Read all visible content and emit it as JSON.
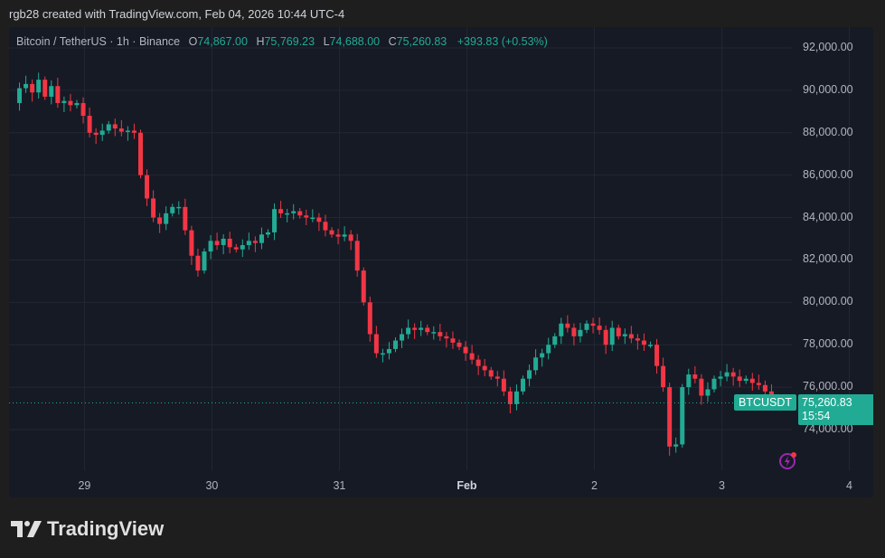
{
  "header": {
    "credit": "rgb28 created with TradingView.com, Feb 04, 2026 10:44 UTC-4"
  },
  "legend": {
    "symbol": "Bitcoin / TetherUS · 1h · Binance",
    "open_label": "O",
    "open": "74,867.00",
    "high_label": "H",
    "high": "75,769.23",
    "low_label": "L",
    "low": "74,688.00",
    "close_label": "C",
    "close": "75,260.83",
    "change": "+393.83 (+0.53%)"
  },
  "tags": {
    "symbol": "BTCUSDT",
    "price": "75,260.83",
    "countdown": "15:54"
  },
  "colors": {
    "up": "#22ab94",
    "down": "#f23645",
    "bg": "#161a25",
    "grid": "#232733",
    "accent": "#22ab94"
  },
  "footer": {
    "brand": "TradingView"
  },
  "chart_data": {
    "type": "candlestick",
    "title": "Bitcoin / TetherUS · 1h · Binance",
    "xlabel": "",
    "ylabel": "",
    "ylim": [
      72000,
      93000
    ],
    "y_ticks": [
      "92,000.00",
      "90,000.00",
      "88,000.00",
      "86,000.00",
      "84,000.00",
      "82,000.00",
      "80,000.00",
      "78,000.00",
      "76,000.00",
      "74,000.00"
    ],
    "x_ticks": [
      "29",
      "30",
      "31",
      "Feb",
      "2",
      "3",
      "4"
    ],
    "last_price": 75260.83,
    "grid": true,
    "closes": [
      89400,
      90100,
      90300,
      89900,
      90500,
      89700,
      90200,
      89400,
      89500,
      89300,
      89400,
      88800,
      88000,
      87900,
      88100,
      88400,
      88200,
      88050,
      88100,
      88000,
      86000,
      84900,
      84000,
      83700,
      84200,
      84500,
      84500,
      83400,
      82200,
      81500,
      82400,
      82900,
      82700,
      83000,
      82600,
      82500,
      82700,
      82900,
      82800,
      83200,
      83300,
      84400,
      84200,
      84200,
      84300,
      84100,
      84000,
      84000,
      83800,
      83400,
      83200,
      83100,
      83200,
      82900,
      81500,
      80000,
      78500,
      77600,
      77600,
      77800,
      78200,
      78500,
      78800,
      78700,
      78800,
      78600,
      78600,
      78400,
      78300,
      78100,
      77900,
      77600,
      77300,
      77000,
      76800,
      76500,
      76400,
      75800,
      75200,
      75800,
      76400,
      76800,
      77400,
      77600,
      78000,
      78400,
      79000,
      78800,
      78400,
      78700,
      79000,
      78900,
      78700,
      78000,
      78800,
      78400,
      78500,
      78300,
      78200,
      78000,
      78000,
      77000,
      76000,
      73200,
      73300,
      76000,
      76600,
      76400,
      75600,
      75900,
      76400,
      76500,
      76700,
      76500,
      76300,
      76400,
      76200,
      76100,
      75800,
      75300,
      75260
    ],
    "x_tick_index": [
      9,
      29,
      49,
      69,
      89,
      109,
      129
    ]
  }
}
